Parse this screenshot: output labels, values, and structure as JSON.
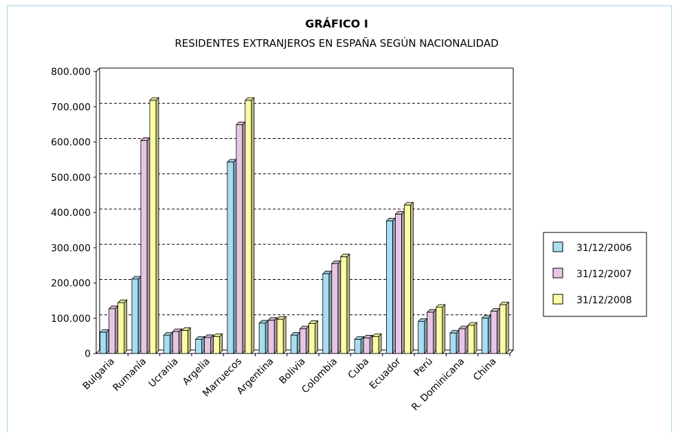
{
  "chart_data": {
    "type": "bar3d",
    "title": "GRÁFICO I",
    "subtitle": "RESIDENTES EXTRANJEROS EN ESPAÑA SEGÚN NACIONALIDAD",
    "categories": [
      "Bulgaria",
      "Rumanía",
      "Ucrania",
      "Argelia",
      "Marruecos",
      "Argentina",
      "Bolivia",
      "Colombia",
      "Cuba",
      "Ecuador",
      "Perú",
      "R. Dominicana",
      "China"
    ],
    "series": [
      {
        "name": "31/12/2006",
        "color": "#a9dcf2",
        "values": [
          60000,
          211000,
          52000,
          40000,
          543000,
          86000,
          52000,
          226000,
          40000,
          376000,
          91000,
          58000,
          100000
        ]
      },
      {
        "name": "31/12/2007",
        "color": "#e6c6e2",
        "values": [
          127000,
          604000,
          62000,
          45000,
          649000,
          94000,
          70000,
          255000,
          44000,
          395000,
          117000,
          70000,
          120000
        ]
      },
      {
        "name": "31/12/2008",
        "color": "#fdfca6",
        "values": [
          144000,
          718000,
          65000,
          48000,
          718000,
          97000,
          85000,
          274000,
          48000,
          421000,
          131000,
          80000,
          138000
        ]
      }
    ],
    "ylim": [
      0,
      800000
    ],
    "yticks": [
      0,
      {
        "value": 100000,
        "label": "100.000"
      },
      {
        "value": 200000,
        "label": "200.000"
      },
      {
        "value": 300000,
        "label": "300.000"
      },
      {
        "value": 400000,
        "label": "400.000"
      },
      {
        "value": 500000,
        "label": "500.000"
      },
      {
        "value": 600000,
        "label": "600.000"
      },
      {
        "value": 700000,
        "label": "700.000"
      },
      {
        "value": 800000,
        "label": "800.000"
      }
    ],
    "grid": true
  }
}
